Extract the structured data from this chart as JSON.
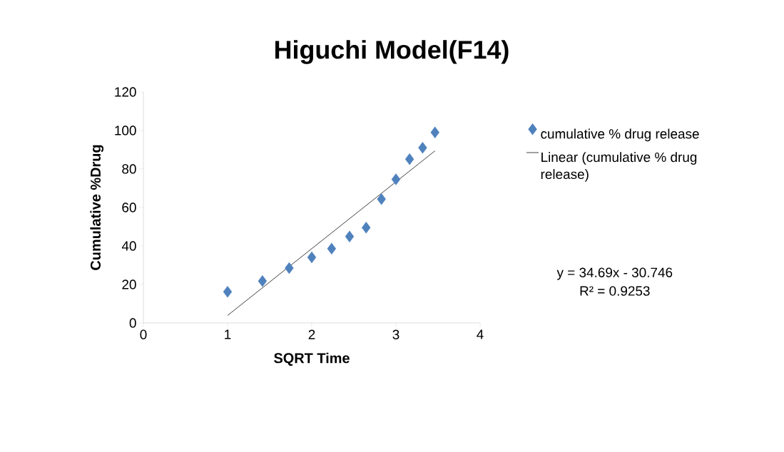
{
  "chart_data": {
    "type": "scatter",
    "title": "Higuchi Model(F14)",
    "xlabel": "SQRT Time",
    "ylabel": "Cumulative %Drug",
    "xlim": [
      0,
      4
    ],
    "xticks": [
      0,
      1,
      2,
      3,
      4
    ],
    "ylim": [
      0,
      120
    ],
    "yticks": [
      0,
      20,
      40,
      60,
      80,
      100,
      120
    ],
    "grid": false,
    "legend": "right",
    "series": [
      {
        "name": "cumulative % drug release",
        "type": "scatter",
        "marker": "diamond",
        "color": "#4f81bd",
        "x": [
          1,
          1.414,
          1.732,
          2,
          2.236,
          2.449,
          2.646,
          2.828,
          3,
          3.162,
          3.317,
          3.464
        ],
        "values": [
          16.2,
          21.8,
          28.5,
          34.1,
          38.6,
          44.9,
          49.5,
          64.3,
          74.6,
          85.1,
          91.0,
          99.0
        ]
      },
      {
        "name": "Linear (cumulative % drug release)",
        "type": "line",
        "marker": "none",
        "line_style": "solid",
        "color": "#404040",
        "x": [
          1,
          3.464
        ],
        "values": [
          3.9,
          89.4
        ]
      }
    ],
    "annotations": [
      "y = 34.69x - 30.746",
      "R² = 0.9253"
    ]
  }
}
